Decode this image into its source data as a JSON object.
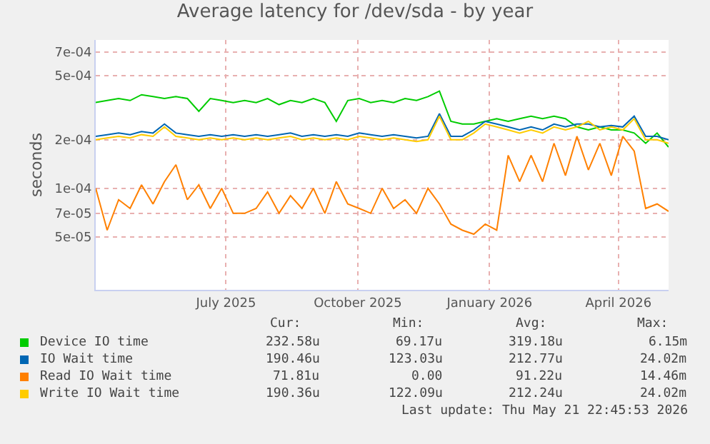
{
  "chart_data": {
    "type": "line",
    "title": "Average latency for /dev/sda - by year",
    "ylabel": "seconds",
    "log": "y",
    "grid": true,
    "legend": "bottom",
    "line_style": "solid",
    "xlim": [
      "2025-04-16",
      "2026-05-21"
    ],
    "xticks": [
      {
        "value": "2025-07-16",
        "label": "July 2025"
      },
      {
        "value": "2025-10-16",
        "label": "October 2025"
      },
      {
        "value": "2026-01-16",
        "label": "January 2026"
      },
      {
        "value": "2026-04-16",
        "label": "April 2026"
      }
    ],
    "ylim": [
      2.35e-05,
      0.00083
    ],
    "yticks": [
      {
        "value": 5e-05,
        "label": "5e-05"
      },
      {
        "value": 7e-05,
        "label": "7e-05"
      },
      {
        "value": 0.0001,
        "label": "1e-04"
      },
      {
        "value": 0.0002,
        "label": "2e-04"
      },
      {
        "value": 0.0005,
        "label": "5e-04"
      },
      {
        "value": 0.0007,
        "label": "7e-04"
      }
    ],
    "x": [
      "2025-04-16",
      "2025-04-24",
      "2025-05-02",
      "2025-05-10",
      "2025-05-18",
      "2025-05-26",
      "2025-06-03",
      "2025-06-11",
      "2025-06-19",
      "2025-06-27",
      "2025-07-05",
      "2025-07-13",
      "2025-07-21",
      "2025-07-29",
      "2025-08-06",
      "2025-08-14",
      "2025-08-22",
      "2025-08-30",
      "2025-09-07",
      "2025-09-15",
      "2025-09-23",
      "2025-10-01",
      "2025-10-09",
      "2025-10-17",
      "2025-10-25",
      "2025-11-02",
      "2025-11-10",
      "2025-11-18",
      "2025-11-26",
      "2025-12-04",
      "2025-12-12",
      "2025-12-20",
      "2025-12-28",
      "2026-01-05",
      "2026-01-13",
      "2026-01-21",
      "2026-01-29",
      "2026-02-06",
      "2026-02-14",
      "2026-02-22",
      "2026-03-02",
      "2026-03-10",
      "2026-03-18",
      "2026-03-26",
      "2026-04-03",
      "2026-04-11",
      "2026-04-19",
      "2026-04-27",
      "2026-05-05",
      "2026-05-13",
      "2026-05-21"
    ],
    "series": [
      {
        "name": "Device IO time",
        "color": "#00cc00",
        "values": [
          0.00034,
          0.00035,
          0.00036,
          0.00035,
          0.00038,
          0.00037,
          0.00036,
          0.00037,
          0.00036,
          0.0003,
          0.00036,
          0.00035,
          0.00034,
          0.00035,
          0.00034,
          0.00036,
          0.00033,
          0.00035,
          0.00034,
          0.00036,
          0.00034,
          0.00026,
          0.00035,
          0.00036,
          0.00034,
          0.00035,
          0.00034,
          0.00036,
          0.00035,
          0.00037,
          0.0004,
          0.00026,
          0.00025,
          0.00025,
          0.00026,
          0.00027,
          0.00026,
          0.00027,
          0.00028,
          0.00027,
          0.00028,
          0.00027,
          0.00024,
          0.00023,
          0.00024,
          0.00023,
          0.00023,
          0.00022,
          0.00019,
          0.00022,
          0.00018
        ]
      },
      {
        "name": "IO Wait time",
        "color": "#0066b3",
        "values": [
          0.00021,
          0.000215,
          0.00022,
          0.000215,
          0.000225,
          0.00022,
          0.00025,
          0.00022,
          0.000215,
          0.00021,
          0.000215,
          0.00021,
          0.000215,
          0.00021,
          0.000215,
          0.00021,
          0.000215,
          0.00022,
          0.00021,
          0.000215,
          0.00021,
          0.000215,
          0.00021,
          0.00022,
          0.000215,
          0.00021,
          0.000215,
          0.00021,
          0.000205,
          0.00021,
          0.00029,
          0.00021,
          0.00021,
          0.00023,
          0.00026,
          0.00025,
          0.00024,
          0.00023,
          0.00024,
          0.00023,
          0.00025,
          0.00024,
          0.00025,
          0.00025,
          0.00024,
          0.000245,
          0.00024,
          0.00028,
          0.00021,
          0.00021,
          0.0002
        ]
      },
      {
        "name": "Read IO Wait time",
        "color": "#ff8000",
        "values": [
          0.0001,
          5.5e-05,
          8.5e-05,
          7.5e-05,
          0.000105,
          8e-05,
          0.00011,
          0.00014,
          8.5e-05,
          0.000105,
          7.5e-05,
          0.0001,
          7e-05,
          7e-05,
          7.5e-05,
          9.5e-05,
          7e-05,
          9e-05,
          7.5e-05,
          0.0001,
          7e-05,
          0.00011,
          8e-05,
          7.5e-05,
          7e-05,
          0.0001,
          7.5e-05,
          8.5e-05,
          7e-05,
          0.0001,
          8e-05,
          6e-05,
          5.5e-05,
          5.2e-05,
          6e-05,
          5.5e-05,
          0.00016,
          0.00011,
          0.00016,
          0.00011,
          0.00019,
          0.00012,
          0.00021,
          0.00013,
          0.00019,
          0.00012,
          0.00021,
          0.00017,
          7.5e-05,
          8e-05,
          7.2e-05
        ]
      },
      {
        "name": "Write IO Wait time",
        "color": "#ffcc00",
        "values": [
          0.0002,
          0.000205,
          0.00021,
          0.000205,
          0.000215,
          0.00021,
          0.00024,
          0.00021,
          0.000205,
          0.0002,
          0.000205,
          0.0002,
          0.000205,
          0.0002,
          0.000205,
          0.0002,
          0.000205,
          0.00021,
          0.0002,
          0.000205,
          0.0002,
          0.000205,
          0.0002,
          0.00021,
          0.000205,
          0.0002,
          0.000205,
          0.0002,
          0.000195,
          0.0002,
          0.00028,
          0.0002,
          0.0002,
          0.00022,
          0.00025,
          0.00024,
          0.00023,
          0.00022,
          0.00023,
          0.00022,
          0.00024,
          0.00023,
          0.00024,
          0.00026,
          0.00023,
          0.00024,
          0.00023,
          0.00027,
          0.0002,
          0.0002,
          0.00019
        ]
      }
    ],
    "annotations": [
      "Cur:",
      "Min:",
      "Avg:",
      "Max:",
      "232.58u",
      "69.17u",
      "319.18u",
      "6.15m",
      "190.46u",
      "123.03u",
      "212.77u",
      "24.02m",
      "71.81u",
      "0.00",
      "91.22u",
      "14.46m",
      "190.36u",
      "122.09u",
      "212.24u",
      "24.02m",
      "Last update: Thu May 21 22:45:53 2026"
    ]
  }
}
